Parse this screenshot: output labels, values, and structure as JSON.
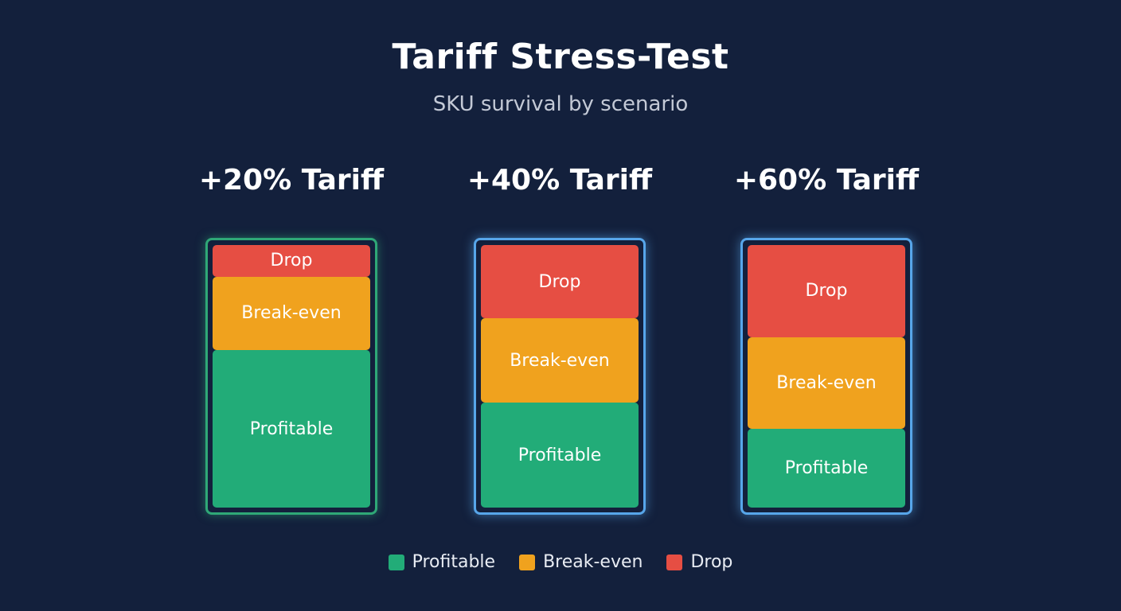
{
  "colors": {
    "background": "#13203c",
    "profitable": "#22ac78",
    "break_even": "#f0a21e",
    "drop": "#e64e43"
  },
  "chart_data": {
    "type": "bar",
    "stacked": true,
    "title": "Tariff Stress-Test",
    "subtitle": "SKU survival by scenario",
    "categories": [
      "+20% Tariff",
      "+40% Tariff",
      "+60% Tariff"
    ],
    "series": [
      {
        "name": "Profitable",
        "color": "#22ac78",
        "values": [
          60,
          40,
          30
        ]
      },
      {
        "name": "Break-even",
        "color": "#f0a21e",
        "values": [
          28,
          32,
          35
        ]
      },
      {
        "name": "Drop",
        "color": "#e64e43",
        "values": [
          12,
          28,
          35
        ]
      }
    ],
    "legend": {
      "position": "bottom",
      "entries": [
        "Profitable",
        "Break-even",
        "Drop"
      ]
    }
  }
}
